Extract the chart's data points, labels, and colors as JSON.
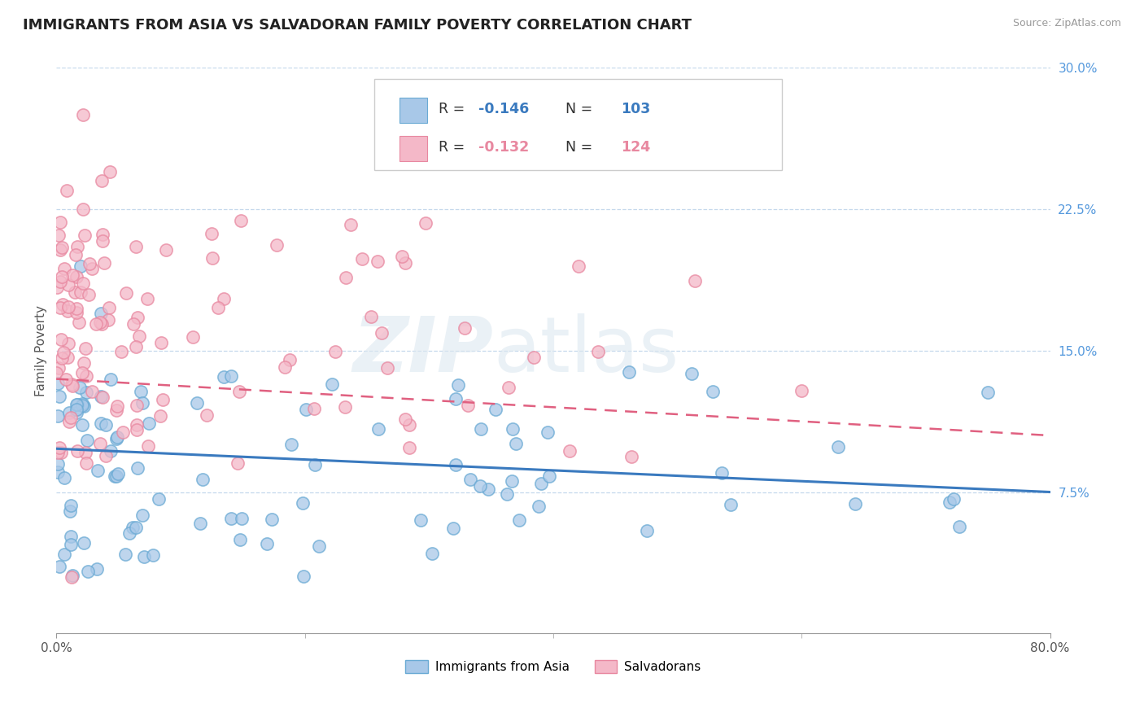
{
  "title": "IMMIGRANTS FROM ASIA VS SALVADORAN FAMILY POVERTY CORRELATION CHART",
  "source_text": "Source: ZipAtlas.com",
  "ylabel": "Family Poverty",
  "xlim": [
    0.0,
    0.8
  ],
  "ylim": [
    0.0,
    0.3
  ],
  "ytick_labels": [
    "7.5%",
    "15.0%",
    "22.5%",
    "30.0%"
  ],
  "ytick_positions": [
    0.075,
    0.15,
    0.225,
    0.3
  ],
  "blue_fill": "#a8c8e8",
  "blue_edge": "#6aaad4",
  "pink_fill": "#f4b8c8",
  "pink_edge": "#e888a0",
  "blue_line_color": "#3a7abf",
  "pink_line_color": "#e06080",
  "legend_label_blue": "Immigrants from Asia",
  "legend_label_pink": "Salvadorans",
  "watermark_zip": "ZIP",
  "watermark_atlas": "atlas",
  "title_fontsize": 13,
  "axis_label_fontsize": 11,
  "tick_fontsize": 11,
  "ytick_color": "#5599dd",
  "blue_trend_start": 0.098,
  "blue_trend_end": 0.075,
  "pink_trend_start": 0.135,
  "pink_trend_end": 0.105
}
